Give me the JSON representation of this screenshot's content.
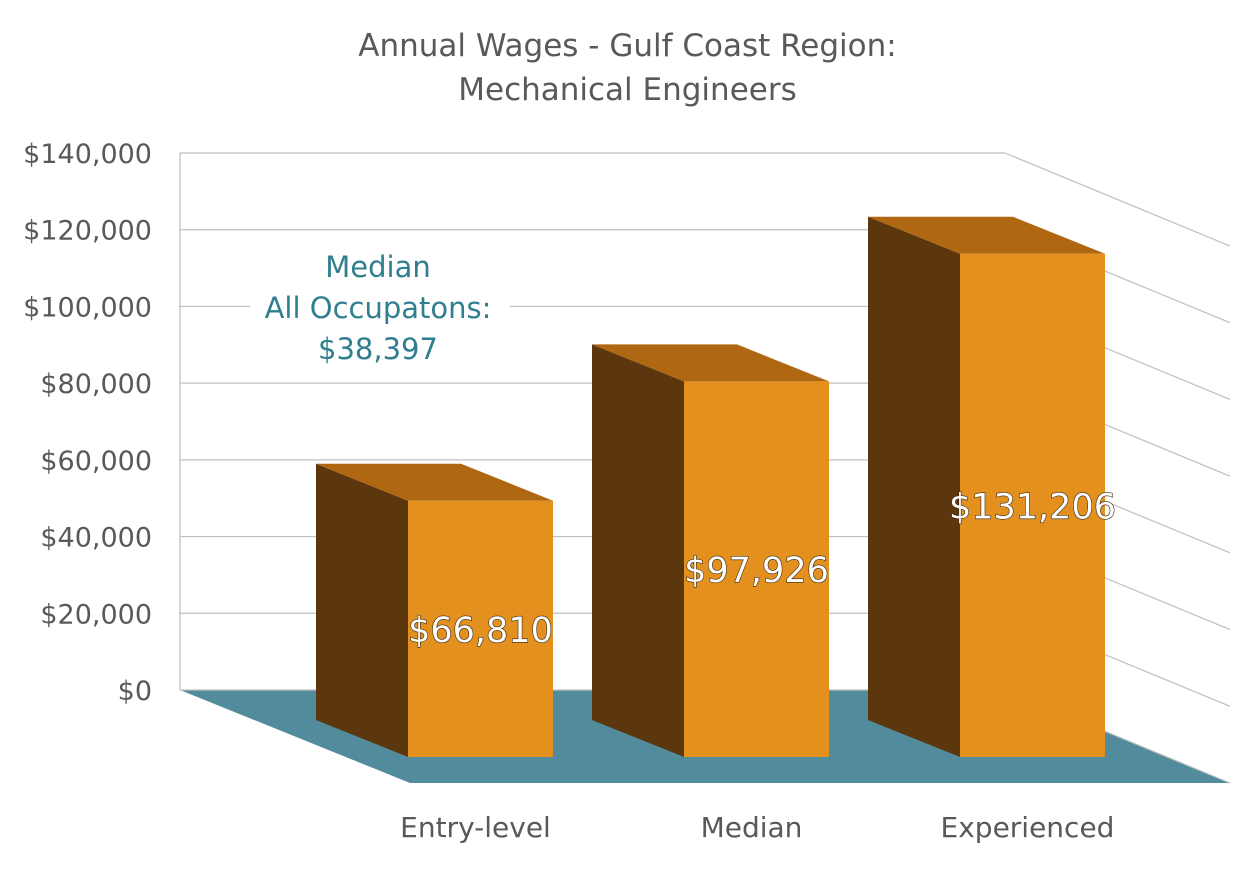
{
  "chart_data": {
    "type": "bar",
    "title": "Annual Wages - Gulf Coast Region:",
    "subtitle": "Mechanical Engineers",
    "categories": [
      "Entry-level",
      "Median",
      "Experienced"
    ],
    "series": [
      {
        "values": [
          66810,
          97926,
          131206
        ],
        "labels": [
          "$66,810",
          "$97,926",
          "$131,206"
        ]
      }
    ],
    "ylim": [
      0,
      140000
    ],
    "yticks": [
      0,
      20000,
      40000,
      60000,
      80000,
      100000,
      120000,
      140000
    ],
    "ytick_labels": [
      "$0",
      "$20,000",
      "$40,000",
      "$60,000",
      "$80,000",
      "$100,000",
      "$120,000",
      "$140,000"
    ],
    "grid": true,
    "three_d": true,
    "annotation": {
      "lines": [
        "Median",
        "All Occupatons:",
        "$38,397"
      ],
      "value": 38397
    },
    "colors": {
      "bar_front": "#E3901E",
      "bar_top": "#AF6711",
      "bar_side": "#5C360C",
      "floor": "#528C9C",
      "annotation": "#2F7F8E",
      "grid": "#BFBFBF",
      "text": "#595959"
    }
  }
}
